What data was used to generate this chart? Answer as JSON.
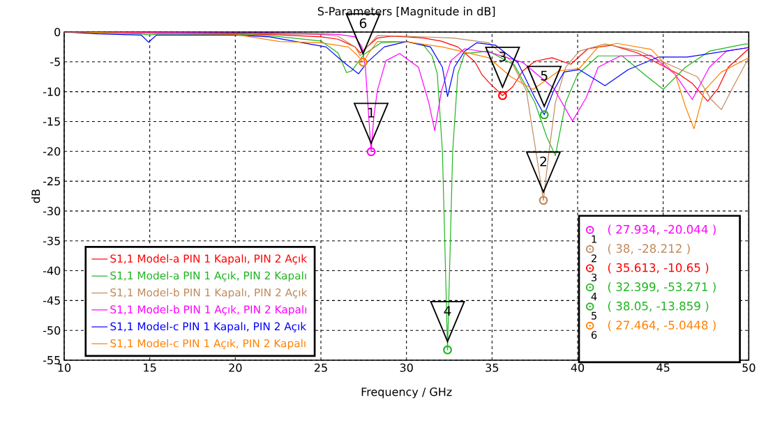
{
  "chart_data": {
    "type": "line",
    "title": "S-Parameters [Magnitude in dB]",
    "xlabel": "Frequency / GHz",
    "ylabel": "dB",
    "xlim": [
      10,
      50
    ],
    "ylim": [
      -55,
      0
    ],
    "xticks": [
      10,
      15,
      20,
      25,
      30,
      35,
      40,
      45,
      50
    ],
    "yticks": [
      -55,
      -50,
      -45,
      -40,
      -35,
      -30,
      -25,
      -20,
      -15,
      -10,
      -5,
      0
    ],
    "grid": true,
    "legend": "bottom left",
    "series": [
      {
        "name": "S1,1 Model-a PIN 1 Kapalı, PIN 2 Açık",
        "color": "#ff0000",
        "x": [
          10,
          15,
          20,
          22,
          25,
          26,
          27,
          27.3,
          27.7,
          28.3,
          29.1,
          30,
          31,
          32,
          33,
          34,
          34.4,
          34.8,
          35.613,
          36.2,
          36.8,
          37.5,
          38.5,
          39.6,
          40.6,
          42,
          43.5,
          45,
          46,
          46.7,
          47.6,
          48.2,
          48.8,
          50
        ],
        "values": [
          0,
          -0.2,
          -0.3,
          -0.4,
          -0.8,
          -1.2,
          -2.5,
          -3.5,
          -2.5,
          -1.0,
          -0.7,
          -0.8,
          -1.0,
          -1.5,
          -2.5,
          -5.0,
          -7.1,
          -8.4,
          -10.65,
          -9.2,
          -6.5,
          -4.9,
          -4.3,
          -5.4,
          -2.8,
          -2.2,
          -3.5,
          -5.7,
          -7.2,
          -8.6,
          -11.6,
          -9.5,
          -5.9,
          -2.8
        ]
      },
      {
        "name": "S1,1 Model-a PIN 1 Açık, PIN 2 Kapalı",
        "color": "#1fb51f",
        "x": [
          10,
          14.5,
          15,
          15.5,
          20,
          22,
          25,
          26,
          26.5,
          26.8,
          27.5,
          28.5,
          30,
          31,
          31.5,
          31.8,
          32.1,
          32.3,
          32.399,
          32.5,
          32.7,
          33,
          33.4,
          34.8,
          36.3,
          37.5,
          38.2,
          38.7,
          39.3,
          40,
          41.2,
          42.6,
          43.9,
          45,
          46.3,
          47.7,
          49.8,
          50
        ],
        "values": [
          0,
          -0.3,
          -0.5,
          -0.3,
          -0.4,
          -0.6,
          -1.5,
          -3.5,
          -6.8,
          -6.5,
          -3.8,
          -1.8,
          -1.6,
          -2.2,
          -4,
          -7,
          -20,
          -42,
          -53.271,
          -42,
          -20,
          -7,
          -3.6,
          -3.2,
          -5.5,
          -11.8,
          -17.6,
          -20.7,
          -11.8,
          -7.1,
          -4.0,
          -4.0,
          -7.1,
          -9.6,
          -5.9,
          -3.2,
          -2.0,
          -2.0
        ]
      },
      {
        "name": "S1,1 Model-b PIN 1 Kapalı, PIN 2 Açık",
        "color": "#c0895a",
        "x": [
          10,
          15,
          20,
          22,
          25,
          26,
          27,
          27.3,
          27.7,
          28.3,
          30,
          32.75,
          34.8,
          36.1,
          37,
          37.6,
          38,
          38.3,
          38.7,
          39.3,
          40.1,
          41.6,
          43.6,
          45.7,
          47,
          47.8,
          48.4,
          49.1,
          50
        ],
        "values": [
          0,
          -0.1,
          -0.2,
          -0.3,
          -0.4,
          -0.7,
          -2.5,
          -4.0,
          -2.5,
          -0.6,
          -0.7,
          -1.0,
          -1.8,
          -4.8,
          -9.8,
          -20.7,
          -28.212,
          -20.7,
          -11.8,
          -5.9,
          -3.2,
          -2.0,
          -3.2,
          -5.9,
          -7.5,
          -11.3,
          -13.0,
          -9.1,
          -4.3
        ]
      },
      {
        "name": "S1,1 Model-b PIN 1 Açık, PIN 2 Kapalı",
        "color": "#ff00ff",
        "x": [
          10,
          15,
          20,
          22,
          25,
          26,
          27,
          27.4,
          27.6,
          27.934,
          28.1,
          28.3,
          28.8,
          29.6,
          30.7,
          31.3,
          31.65,
          32.05,
          32.6,
          33.4,
          35,
          36.8,
          38.6,
          39.7,
          40.5,
          41.2,
          42.5,
          44.3,
          45.7,
          46.7,
          47.7,
          48.7,
          50
        ],
        "values": [
          0,
          -0.1,
          -0.2,
          -0.2,
          -0.3,
          -0.4,
          -0.8,
          -2.5,
          -5.9,
          -20.044,
          -14,
          -9.8,
          -4.8,
          -3.6,
          -5.9,
          -11.8,
          -16.5,
          -9.8,
          -4.8,
          -2.8,
          -3.5,
          -5.1,
          -9.4,
          -14.9,
          -11,
          -5.9,
          -4.0,
          -3.9,
          -7.1,
          -11.3,
          -5.9,
          -3.2,
          -2.6
        ]
      },
      {
        "name": "S1,1 Model-c PIN 1 Kapalı, PIN 2 Açık",
        "color": "#0000ff",
        "x": [
          10,
          12,
          14.5,
          14.93,
          15.4,
          20,
          22,
          25.3,
          26.3,
          27.2,
          27.7,
          28.7,
          30,
          31.4,
          32.1,
          32.4,
          32.8,
          33.4,
          34.1,
          35.2,
          36.5,
          37.5,
          38.05,
          38.6,
          39.2,
          40.1,
          41.6,
          42.95,
          44.7,
          46.4,
          50
        ],
        "values": [
          0,
          -0.3,
          -0.5,
          -1.7,
          -0.5,
          -0.5,
          -0.8,
          -2.5,
          -5.0,
          -7.0,
          -5.1,
          -2.5,
          -1.6,
          -2.5,
          -5.9,
          -10.8,
          -5.9,
          -3.2,
          -1.8,
          -2.2,
          -5.1,
          -11.0,
          -13.859,
          -9.8,
          -6.7,
          -6.3,
          -9.0,
          -6.3,
          -4.2,
          -4.2,
          -2.6
        ]
      },
      {
        "name": "S1,1 Model-c PIN 1 Açık, PIN 2 Kapalı",
        "color": "#ff8000",
        "x": [
          10,
          15,
          20,
          22.6,
          25,
          26.6,
          27.1,
          27.464,
          27.8,
          28.3,
          29.9,
          32.1,
          34.8,
          36.1,
          37.4,
          38.9,
          40.1,
          41.2,
          42.3,
          44.3,
          45.7,
          46.3,
          46.8,
          47.4,
          48.4,
          50
        ],
        "values": [
          0,
          -0.2,
          -0.4,
          -1.6,
          -1.8,
          -2.5,
          -3.8,
          -5.0448,
          -3.5,
          -1.6,
          -1.6,
          -2.5,
          -4.3,
          -7.5,
          -9.6,
          -6.5,
          -6.1,
          -2.5,
          -1.9,
          -2.9,
          -7.1,
          -12.5,
          -16.2,
          -9.8,
          -6.7,
          -4.3
        ]
      },
      {
        "type": "scatter",
        "color": "#ff00ff",
        "x": [
          27.934
        ],
        "values": [
          -20.044
        ]
      },
      {
        "type": "scatter",
        "color": "#c0895a",
        "x": [
          38
        ],
        "values": [
          -28.212
        ]
      },
      {
        "type": "scatter",
        "color": "#ff0000",
        "x": [
          35.613
        ],
        "values": [
          -10.65
        ]
      },
      {
        "type": "scatter",
        "color": "#1fb51f",
        "x": [
          32.399
        ],
        "values": [
          -53.271
        ]
      },
      {
        "type": "scatter",
        "color": "#1fb51f",
        "x": [
          38.05
        ],
        "values": [
          -13.859
        ]
      },
      {
        "type": "scatter",
        "color": "#ff8000",
        "x": [
          27.464
        ],
        "values": [
          -5.0448
        ]
      }
    ],
    "annotations": [
      {
        "text": "1",
        "x": 27.934,
        "y": -20.044
      },
      {
        "text": "2",
        "x": 38,
        "y": -28.212
      },
      {
        "text": "3",
        "x": 35.613,
        "y": -10.65
      },
      {
        "text": "4",
        "x": 32.399,
        "y": -53.271
      },
      {
        "text": "5",
        "x": 38.05,
        "y": -13.859
      },
      {
        "text": "6",
        "x": 27.464,
        "y": -5.0448
      },
      "1",
      "( 27.934, -20.044 )",
      "2",
      "( 38, -28.212 )",
      "3",
      "( 35.613, -10.65 )",
      "4",
      "( 32.399, -53.271 )",
      "5",
      "( 38.05, -13.859 )",
      "6",
      "( 27.464, -5.0448 )"
    ]
  }
}
